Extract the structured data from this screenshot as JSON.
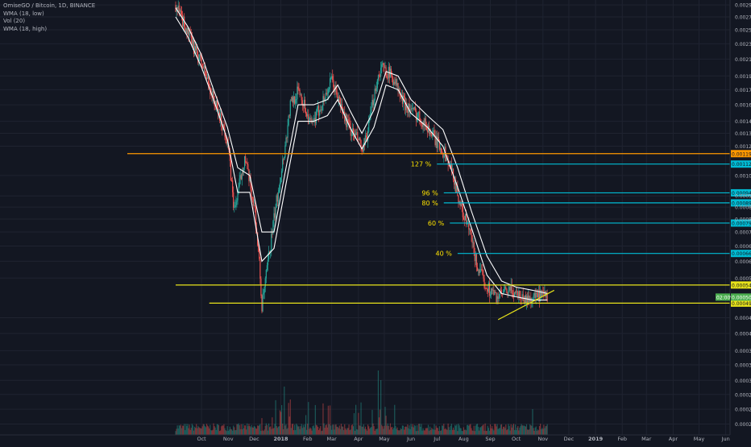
{
  "header": {
    "symbol_line": "OmiseGO / Bitcoin, 1D, BINANCE",
    "indicators": [
      "WMA (18, low)",
      "Vol (20)",
      "WMA (18, high)"
    ]
  },
  "colors": {
    "background": "#131722",
    "grid": "#1f2330",
    "candle_up": "#26a69a",
    "candle_down": "#ef5350",
    "wma": "#ffffff",
    "orange_level": "#ff9800",
    "yellow_level": "#e8e31a",
    "cyan_level": "#00bcd4",
    "fib_text": "#ffe400",
    "current_price_tag": "#4caf50"
  },
  "chart_data": {
    "type": "candlestick",
    "title": "OmiseGO / Bitcoin, 1D, BINANCE",
    "y_axis": {
      "scale": "log",
      "ylim": [
        0.000224,
        0.002986
      ],
      "tick_labels": [
        "0.002900",
        "0.002700",
        "0.002500",
        "0.002300",
        "0.002100",
        "0.001900",
        "0.001750",
        "0.001600",
        "0.001450",
        "0.001350",
        "0.001250",
        "0.001050",
        "0.000930",
        "0.000870",
        "0.000810",
        "0.000750",
        "0.000690",
        "0.000630",
        "0.000570",
        "0.000450",
        "0.000410",
        "0.000370",
        "0.000340",
        "0.000310",
        "0.000285",
        "0.000261",
        "0.000239"
      ]
    },
    "x_axis": {
      "labels": [
        "Oct",
        "Nov",
        "Dec",
        "2018",
        "Feb",
        "Mar",
        "Apr",
        "May",
        "Jun",
        "Jul",
        "Aug",
        "Sep",
        "Oct",
        "Nov",
        "Dec",
        "2019",
        "Feb",
        "Mar",
        "Apr",
        "May",
        "Jun"
      ]
    },
    "price_path": [
      [
        "2017-09-01",
        0.0029
      ],
      [
        "2017-09-07",
        0.0027
      ],
      [
        "2017-09-14",
        0.0025
      ],
      [
        "2017-09-22",
        0.00225
      ],
      [
        "2017-10-01",
        0.00205
      ],
      [
        "2017-10-08",
        0.00185
      ],
      [
        "2017-10-15",
        0.00165
      ],
      [
        "2017-10-24",
        0.00145
      ],
      [
        "2017-10-31",
        0.0013
      ],
      [
        "2017-11-04",
        0.00105
      ],
      [
        "2017-11-08",
        0.00085
      ],
      [
        "2017-11-14",
        0.001
      ],
      [
        "2017-11-20",
        0.00117
      ],
      [
        "2017-11-26",
        0.001
      ],
      [
        "2017-12-02",
        0.00085
      ],
      [
        "2017-12-07",
        0.00062
      ],
      [
        "2017-12-10",
        0.00048
      ],
      [
        "2017-12-16",
        0.0006
      ],
      [
        "2017-12-23",
        0.00078
      ],
      [
        "2017-12-30",
        0.001
      ],
      [
        "2018-01-06",
        0.00125
      ],
      [
        "2018-01-12",
        0.0016
      ],
      [
        "2018-01-22",
        0.00175
      ],
      [
        "2018-01-30",
        0.00155
      ],
      [
        "2018-02-06",
        0.0014
      ],
      [
        "2018-02-14",
        0.00155
      ],
      [
        "2018-02-22",
        0.0017
      ],
      [
        "2018-03-01",
        0.00185
      ],
      [
        "2018-03-09",
        0.00165
      ],
      [
        "2018-03-18",
        0.00145
      ],
      [
        "2018-03-25",
        0.00135
      ],
      [
        "2018-04-01",
        0.0013
      ],
      [
        "2018-04-06",
        0.0012
      ],
      [
        "2018-04-13",
        0.0014
      ],
      [
        "2018-04-20",
        0.00175
      ],
      [
        "2018-04-27",
        0.002
      ],
      [
        "2018-05-05",
        0.00195
      ],
      [
        "2018-05-13",
        0.00185
      ],
      [
        "2018-05-21",
        0.00165
      ],
      [
        "2018-06-01",
        0.00155
      ],
      [
        "2018-06-10",
        0.0015
      ],
      [
        "2018-06-20",
        0.0014
      ],
      [
        "2018-07-01",
        0.00128
      ],
      [
        "2018-07-10",
        0.0012
      ],
      [
        "2018-07-20",
        0.00105
      ],
      [
        "2018-07-30",
        0.00085
      ],
      [
        "2018-08-08",
        0.00075
      ],
      [
        "2018-08-16",
        0.00062
      ],
      [
        "2018-08-24",
        0.00056
      ],
      [
        "2018-09-01",
        0.00053
      ],
      [
        "2018-09-08",
        0.00051
      ],
      [
        "2018-09-16",
        0.00052
      ],
      [
        "2018-09-25",
        0.00053
      ],
      [
        "2018-10-04",
        0.00052
      ],
      [
        "2018-10-12",
        0.0005
      ],
      [
        "2018-10-22",
        0.00051
      ],
      [
        "2018-10-31",
        0.00051
      ],
      [
        "2018-11-06",
        0.000511
      ]
    ],
    "wma_high": [
      [
        "2017-09-01",
        0.00285
      ],
      [
        "2017-09-15",
        0.00255
      ],
      [
        "2017-10-01",
        0.00215
      ],
      [
        "2017-10-15",
        0.00175
      ],
      [
        "2017-10-31",
        0.0014
      ],
      [
        "2017-11-12",
        0.0011
      ],
      [
        "2017-11-26",
        0.00105
      ],
      [
        "2017-12-10",
        0.00075
      ],
      [
        "2017-12-24",
        0.00075
      ],
      [
        "2018-01-07",
        0.0011
      ],
      [
        "2018-01-21",
        0.0016
      ],
      [
        "2018-02-08",
        0.0016
      ],
      [
        "2018-02-24",
        0.00165
      ],
      [
        "2018-03-08",
        0.0018
      ],
      [
        "2018-03-22",
        0.00155
      ],
      [
        "2018-04-05",
        0.00135
      ],
      [
        "2018-04-19",
        0.00155
      ],
      [
        "2018-05-03",
        0.00195
      ],
      [
        "2018-05-17",
        0.0019
      ],
      [
        "2018-06-01",
        0.00165
      ],
      [
        "2018-06-20",
        0.0015
      ],
      [
        "2018-07-08",
        0.00138
      ],
      [
        "2018-07-25",
        0.0011
      ],
      [
        "2018-08-10",
        0.00085
      ],
      [
        "2018-08-28",
        0.00065
      ],
      [
        "2018-09-14",
        0.00056
      ],
      [
        "2018-10-01",
        0.00054
      ],
      [
        "2018-10-20",
        0.00053
      ],
      [
        "2018-11-06",
        0.00052
      ]
    ],
    "wma_low": [
      [
        "2017-09-01",
        0.0027
      ],
      [
        "2017-09-15",
        0.0024
      ],
      [
        "2017-10-01",
        0.002
      ],
      [
        "2017-10-15",
        0.00165
      ],
      [
        "2017-10-31",
        0.0013
      ],
      [
        "2017-11-12",
        0.00095
      ],
      [
        "2017-11-26",
        0.00095
      ],
      [
        "2017-12-10",
        0.00063
      ],
      [
        "2017-12-24",
        0.00068
      ],
      [
        "2018-01-07",
        0.001
      ],
      [
        "2018-01-21",
        0.00145
      ],
      [
        "2018-02-08",
        0.00145
      ],
      [
        "2018-02-24",
        0.0015
      ],
      [
        "2018-03-08",
        0.00165
      ],
      [
        "2018-03-22",
        0.0014
      ],
      [
        "2018-04-05",
        0.00123
      ],
      [
        "2018-04-19",
        0.0014
      ],
      [
        "2018-05-03",
        0.0018
      ],
      [
        "2018-05-17",
        0.00175
      ],
      [
        "2018-06-01",
        0.00152
      ],
      [
        "2018-06-20",
        0.0014
      ],
      [
        "2018-07-08",
        0.00125
      ],
      [
        "2018-07-25",
        0.00098
      ],
      [
        "2018-08-10",
        0.00077
      ],
      [
        "2018-08-28",
        0.00058
      ],
      [
        "2018-09-14",
        0.00052
      ],
      [
        "2018-10-01",
        0.00051
      ],
      [
        "2018-10-20",
        0.0005
      ],
      [
        "2018-11-06",
        0.0005
      ]
    ],
    "volume_spikes": [
      [
        "2017-12-10",
        0.45
      ],
      [
        "2018-01-05",
        0.75
      ],
      [
        "2018-01-12",
        0.55
      ],
      [
        "2018-04-24",
        1.0
      ],
      [
        "2018-04-27",
        0.85
      ],
      [
        "2018-05-02",
        0.6
      ],
      [
        "2018-10-20",
        0.4
      ]
    ],
    "horizontal_levels": [
      {
        "price": 0.001196,
        "label": "0.001196",
        "color": "#ff9800",
        "from": "2017-09-01"
      },
      {
        "price": 0.000547,
        "label": "0.000547",
        "color": "#e8e31a",
        "from": "2017-09-01"
      },
      {
        "price": 0.000491,
        "label": "0.000491",
        "color": "#e8e31a",
        "from": "2017-10-10"
      }
    ],
    "fib_levels": [
      {
        "label": "127 %",
        "price": 0.001124,
        "tag": "0.001124",
        "from": "2018-07-01"
      },
      {
        "label": "96 %",
        "price": 0.000947,
        "tag": "0.000947",
        "from": "2018-07-09"
      },
      {
        "label": "80 %",
        "price": 0.000892,
        "tag": "0.000892",
        "from": "2018-07-09"
      },
      {
        "label": "60 %",
        "price": 0.000791,
        "tag": "0.000791",
        "from": "2018-07-16"
      },
      {
        "label": "40 %",
        "price": 0.00066,
        "tag": "0.000660",
        "from": "2018-07-25"
      }
    ],
    "trendline": {
      "from": [
        "2018-09-10",
        0.000445
      ],
      "to": [
        "2018-11-14",
        0.00053
      ],
      "color": "#e8e31a"
    },
    "current_price": {
      "price": 0.000509,
      "label": "0.000509",
      "countdown": "02:00%"
    }
  }
}
